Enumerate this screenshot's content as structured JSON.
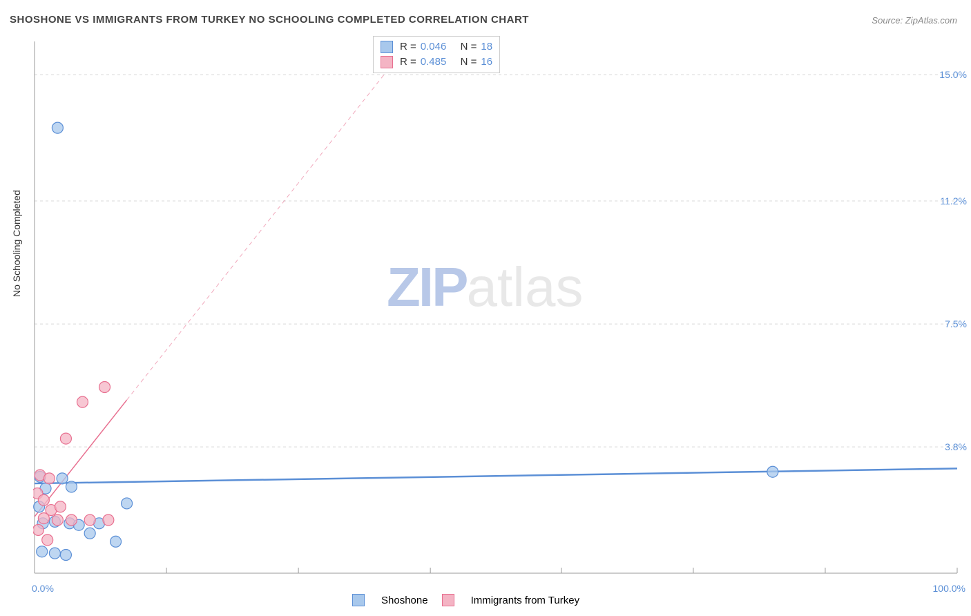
{
  "title": "SHOSHONE VS IMMIGRANTS FROM TURKEY NO SCHOOLING COMPLETED CORRELATION CHART",
  "source_label": "Source:",
  "source_value": "ZipAtlas.com",
  "yaxis_label": "No Schooling Completed",
  "watermark_bold": "ZIP",
  "watermark_light": "atlas",
  "chart": {
    "type": "scatter",
    "xlim": [
      0,
      100
    ],
    "ylim": [
      0,
      16
    ],
    "ytick_values": [
      3.8,
      7.5,
      11.2,
      15.0
    ],
    "ytick_labels": [
      "3.8%",
      "7.5%",
      "11.2%",
      "15.0%"
    ],
    "xtick_values": [
      0,
      14.3,
      28.6,
      42.9,
      57.1,
      71.4,
      85.7,
      100
    ],
    "xtick_labels_shown": {
      "0": "0.0%",
      "100": "100.0%"
    },
    "gridline_color": "#d8d8d8",
    "gridline_dash": "4 4",
    "axis_color": "#999999",
    "background": "#ffffff"
  },
  "series": [
    {
      "name": "Shoshone",
      "color_fill": "#a8c8ec",
      "color_stroke": "#5b8fd6",
      "marker_radius": 8,
      "marker_opacity": 0.75,
      "R": "0.046",
      "N": "18",
      "trend": {
        "x1": 0,
        "y1": 2.7,
        "x2": 100,
        "y2": 3.15,
        "dash": "none",
        "width": 2.5
      },
      "points": [
        [
          2.5,
          13.4
        ],
        [
          80.0,
          3.05
        ],
        [
          0.6,
          2.9
        ],
        [
          1.2,
          2.55
        ],
        [
          3.0,
          2.85
        ],
        [
          0.5,
          2.0
        ],
        [
          4.0,
          2.6
        ],
        [
          0.9,
          1.5
        ],
        [
          2.2,
          1.55
        ],
        [
          3.8,
          1.5
        ],
        [
          4.8,
          1.45
        ],
        [
          7.0,
          1.5
        ],
        [
          10.0,
          2.1
        ],
        [
          0.8,
          0.65
        ],
        [
          2.2,
          0.6
        ],
        [
          3.4,
          0.55
        ],
        [
          6.0,
          1.2
        ],
        [
          8.8,
          0.95
        ]
      ]
    },
    {
      "name": "Immigrants from Turkey",
      "color_fill": "#f4b4c4",
      "color_stroke": "#e87090",
      "marker_radius": 8,
      "marker_opacity": 0.75,
      "R": "0.485",
      "N": "16",
      "trend": {
        "x1": 0,
        "y1": 1.7,
        "x2": 45,
        "y2": 17.5,
        "dash": "6 5",
        "width": 1.5,
        "solid_until_x": 10
      },
      "points": [
        [
          7.6,
          5.6
        ],
        [
          5.2,
          5.15
        ],
        [
          3.4,
          4.05
        ],
        [
          0.6,
          2.95
        ],
        [
          1.6,
          2.85
        ],
        [
          0.3,
          2.4
        ],
        [
          1.0,
          2.2
        ],
        [
          1.8,
          1.9
        ],
        [
          2.8,
          2.0
        ],
        [
          1.0,
          1.65
        ],
        [
          2.5,
          1.6
        ],
        [
          4.0,
          1.6
        ],
        [
          6.0,
          1.6
        ],
        [
          8.0,
          1.6
        ],
        [
          0.4,
          1.3
        ],
        [
          1.4,
          1.0
        ]
      ]
    }
  ],
  "legend_top_format": {
    "R_label": "R =",
    "N_label": "N ="
  },
  "legend_bottom": [
    {
      "label": "Shoshone",
      "fill": "#a8c8ec",
      "stroke": "#5b8fd6"
    },
    {
      "label": "Immigrants from Turkey",
      "fill": "#f4b4c4",
      "stroke": "#e87090"
    }
  ]
}
